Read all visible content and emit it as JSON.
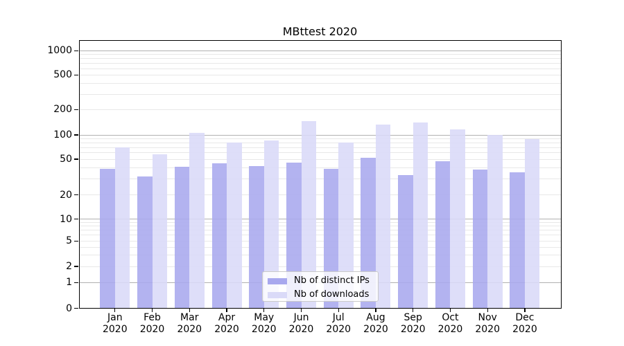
{
  "chart_data": {
    "type": "bar",
    "title": "MBttest 2020",
    "x_year": "2020",
    "categories": [
      "Jan",
      "Feb",
      "Mar",
      "Apr",
      "May",
      "Jun",
      "Jul",
      "Aug",
      "Sep",
      "Oct",
      "Nov",
      "Dec"
    ],
    "series": [
      {
        "name": "Nb of distinct IPs",
        "color": "#a8a8ee",
        "values": [
          39,
          32,
          41,
          45,
          42,
          46,
          39,
          52,
          33,
          47,
          38,
          36
        ]
      },
      {
        "name": "Nb of downloads",
        "color": "#dadaf8",
        "values": [
          70,
          57,
          106,
          80,
          86,
          146,
          81,
          133,
          140,
          116,
          100,
          88
        ]
      }
    ],
    "y_ticks": [
      0,
      1,
      2,
      5,
      10,
      20,
      50,
      100,
      200,
      500,
      1000
    ],
    "y_scale": "log-like (0 baseline, log decades above 1)",
    "ylim": [
      0,
      1300
    ],
    "grid": "horizontal major at powers of 10, light minors at 2-9 per decade",
    "legend_position": "lower center"
  },
  "colors": {
    "bar_distinct_ips": "#a8a8ee",
    "bar_downloads": "#dadaf8",
    "grid_major": "#b0b0b0",
    "grid_minor": "#e8e8e8",
    "axis": "#000000",
    "legend_border": "#c9c9c9",
    "background": "#ffffff"
  }
}
